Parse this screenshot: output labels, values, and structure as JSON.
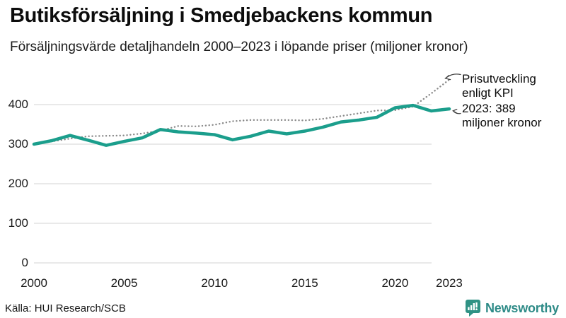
{
  "header": {
    "title": "Butiksförsäljning i Smedjebackens kommun",
    "subtitle": "Försäljningsvärde detaljhandeln 2000–2023 i löpande priser (miljoner kronor)"
  },
  "chart_data": {
    "type": "line",
    "x": [
      2000,
      2001,
      2002,
      2003,
      2004,
      2005,
      2006,
      2007,
      2008,
      2009,
      2010,
      2011,
      2012,
      2013,
      2014,
      2015,
      2016,
      2017,
      2018,
      2019,
      2020,
      2021,
      2022,
      2023
    ],
    "series": [
      {
        "name": "Prisutveckling enligt KPI",
        "style": "dotted",
        "color": "#8a8a8a",
        "values": [
          300,
          307,
          314,
          320,
          321,
          322,
          327,
          334,
          346,
          345,
          349,
          358,
          361,
          361,
          361,
          360,
          364,
          371,
          378,
          385,
          386,
          395,
          428,
          463
        ]
      },
      {
        "name": "Försäljningsvärde detaljhandeln",
        "style": "solid",
        "color": "#1b9e8c",
        "values": [
          300,
          309,
          322,
          310,
          297,
          307,
          316,
          337,
          331,
          328,
          324,
          311,
          320,
          333,
          326,
          333,
          343,
          356,
          361,
          368,
          392,
          398,
          384,
          389
        ]
      }
    ],
    "yticks": [
      0,
      100,
      200,
      300,
      400
    ],
    "xticks": [
      2000,
      2005,
      2010,
      2015,
      2020,
      2023
    ],
    "ylim": [
      0,
      470
    ],
    "grid": "horizontal",
    "legend_position": "annotations-right",
    "annotations": {
      "kpi": {
        "line1": "Prisutveckling",
        "line2": "enligt KPI"
      },
      "sales": {
        "line1": "2023: 389",
        "line2": "miljoner kronor"
      }
    }
  },
  "footer": {
    "source": "Källa: HUI Research/SCB",
    "brand": "Newsworthy"
  },
  "colors": {
    "accent": "#1b9e8c",
    "kpi_line": "#8a8a8a",
    "grid": "#dcdcdc",
    "arrow": "#3f3f3f",
    "brand": "#2e8b87"
  }
}
